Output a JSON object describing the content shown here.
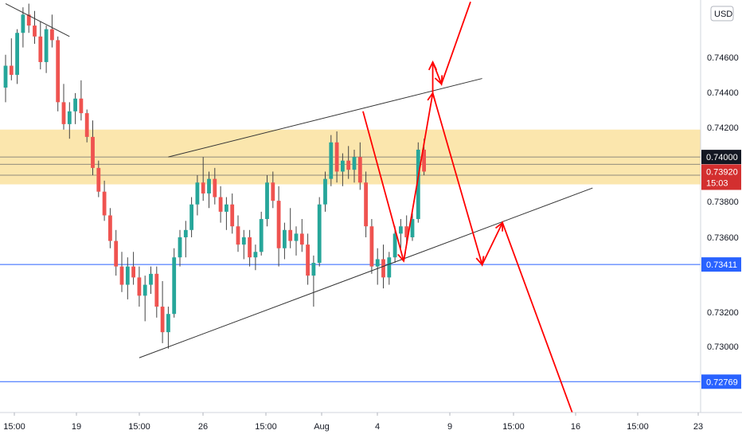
{
  "chart_data": {
    "type": "candlestick",
    "currency": "USD",
    "price_axis": {
      "min": 0.726,
      "max": 0.7486
    },
    "y_ticks": [
      "0.74600",
      "0.74400",
      "0.74200",
      "0.73800",
      "0.73600",
      "0.73200",
      "0.73000"
    ],
    "x_ticks": [
      "15:00",
      "19",
      "15:00",
      "26",
      "15:00",
      "Aug",
      "4",
      "9",
      "15:00",
      "16",
      "15:00",
      "23"
    ],
    "current_price": {
      "value": "0.73920",
      "countdown": "15:03",
      "color": "#d32f2f"
    },
    "level_label": {
      "value": "0.74000",
      "color": "#131722"
    },
    "horizontal_levels": [
      {
        "value": "0.73411",
        "price": 0.73411,
        "color": "#2962ff"
      },
      {
        "value": "0.72769",
        "price": 0.72769,
        "color": "#2962ff"
      }
    ],
    "resistance_zone": {
      "from": 0.7385,
      "to": 0.7415,
      "color": "#fbe3a4"
    },
    "zone_lines": [
      0.74,
      0.7396,
      0.739
    ],
    "colors": {
      "up": "#26a69a",
      "down": "#ef5350",
      "projection": "#ff0000",
      "trendline": "#333333"
    },
    "candles": [
      [
        0.7438,
        0.7456,
        0.743,
        0.745
      ],
      [
        0.745,
        0.7465,
        0.7442,
        0.7445
      ],
      [
        0.7445,
        0.747,
        0.744,
        0.7468
      ],
      [
        0.7468,
        0.7482,
        0.746,
        0.7478
      ],
      [
        0.7478,
        0.7484,
        0.7468,
        0.7472
      ],
      [
        0.7472,
        0.748,
        0.7462,
        0.7466
      ],
      [
        0.7466,
        0.7474,
        0.7448,
        0.7452
      ],
      [
        0.7452,
        0.7472,
        0.7446,
        0.747
      ],
      [
        0.747,
        0.7478,
        0.746,
        0.7464
      ],
      [
        0.7464,
        0.7466,
        0.7425,
        0.743
      ],
      [
        0.743,
        0.744,
        0.7415,
        0.7418
      ],
      [
        0.7418,
        0.743,
        0.741,
        0.7425
      ],
      [
        0.7425,
        0.7435,
        0.7418,
        0.7432
      ],
      [
        0.7432,
        0.7442,
        0.742,
        0.7424
      ],
      [
        0.7424,
        0.7426,
        0.7408,
        0.7411
      ],
      [
        0.7411,
        0.742,
        0.739,
        0.7394
      ],
      [
        0.7394,
        0.7398,
        0.7378,
        0.7381
      ],
      [
        0.7381,
        0.7387,
        0.7365,
        0.7368
      ],
      [
        0.7368,
        0.7372,
        0.735,
        0.7354
      ],
      [
        0.7354,
        0.736,
        0.7335,
        0.734
      ],
      [
        0.734,
        0.7348,
        0.7326,
        0.733
      ],
      [
        0.733,
        0.7345,
        0.7322,
        0.734
      ],
      [
        0.734,
        0.7348,
        0.733,
        0.7334
      ],
      [
        0.7334,
        0.734,
        0.7318,
        0.7324
      ],
      [
        0.7324,
        0.7335,
        0.731,
        0.733
      ],
      [
        0.733,
        0.734,
        0.7325,
        0.7336
      ],
      [
        0.7336,
        0.734,
        0.7312,
        0.7318
      ],
      [
        0.7318,
        0.7332,
        0.7298,
        0.7304
      ],
      [
        0.7304,
        0.7318,
        0.7295,
        0.7314
      ],
      [
        0.7314,
        0.735,
        0.7312,
        0.7345
      ],
      [
        0.7345,
        0.736,
        0.734,
        0.7356
      ],
      [
        0.7356,
        0.7365,
        0.7345,
        0.736
      ],
      [
        0.736,
        0.7378,
        0.7356,
        0.7374
      ],
      [
        0.7374,
        0.739,
        0.7368,
        0.7386
      ],
      [
        0.7386,
        0.74,
        0.7376,
        0.738
      ],
      [
        0.738,
        0.7392,
        0.7372,
        0.7388
      ],
      [
        0.7388,
        0.7394,
        0.7374,
        0.7378
      ],
      [
        0.7378,
        0.7384,
        0.7364,
        0.737
      ],
      [
        0.737,
        0.7378,
        0.736,
        0.7374
      ],
      [
        0.7374,
        0.738,
        0.7358,
        0.7362
      ],
      [
        0.7362,
        0.7368,
        0.7348,
        0.7352
      ],
      [
        0.7352,
        0.736,
        0.7344,
        0.7356
      ],
      [
        0.7356,
        0.736,
        0.734,
        0.7345
      ],
      [
        0.7345,
        0.7352,
        0.7338,
        0.7348
      ],
      [
        0.7348,
        0.737,
        0.7346,
        0.7366
      ],
      [
        0.7366,
        0.739,
        0.7362,
        0.7386
      ],
      [
        0.7386,
        0.7392,
        0.7372,
        0.7376
      ],
      [
        0.7376,
        0.7384,
        0.734,
        0.735
      ],
      [
        0.735,
        0.7364,
        0.7344,
        0.736
      ],
      [
        0.736,
        0.7372,
        0.735,
        0.7354
      ],
      [
        0.7354,
        0.7362,
        0.7346,
        0.7358
      ],
      [
        0.7358,
        0.7366,
        0.7348,
        0.7352
      ],
      [
        0.7352,
        0.7358,
        0.733,
        0.7335
      ],
      [
        0.7335,
        0.7346,
        0.7318,
        0.7342
      ],
      [
        0.7342,
        0.7378,
        0.734,
        0.7374
      ],
      [
        0.7374,
        0.7392,
        0.737,
        0.7388
      ],
      [
        0.7388,
        0.7412,
        0.7384,
        0.7408
      ],
      [
        0.7408,
        0.7414,
        0.7386,
        0.7392
      ],
      [
        0.7392,
        0.7402,
        0.7384,
        0.7398
      ],
      [
        0.7398,
        0.7406,
        0.7388,
        0.7393
      ],
      [
        0.7393,
        0.7404,
        0.7386,
        0.74
      ],
      [
        0.74,
        0.7408,
        0.7382,
        0.7386
      ],
      [
        0.7386,
        0.7392,
        0.7356,
        0.7362
      ],
      [
        0.7362,
        0.7366,
        0.7336,
        0.734
      ],
      [
        0.734,
        0.735,
        0.733,
        0.7344
      ],
      [
        0.7344,
        0.7352,
        0.7328,
        0.7334
      ],
      [
        0.7334,
        0.7348,
        0.733,
        0.7345
      ],
      [
        0.7345,
        0.7362,
        0.7342,
        0.7358
      ],
      [
        0.7358,
        0.7366,
        0.735,
        0.7362
      ],
      [
        0.7362,
        0.7368,
        0.7352,
        0.7356
      ],
      [
        0.7356,
        0.737,
        0.7354,
        0.7366
      ],
      [
        0.7366,
        0.7408,
        0.7364,
        0.7404
      ],
      [
        0.7404,
        0.741,
        0.739,
        0.7392
      ]
    ],
    "trendlines": [
      {
        "x1": 0,
        "y1": 0.7484,
        "x2": 11,
        "y2": 0.7466
      },
      {
        "x1": 23,
        "y1": 0.729,
        "x2": 101,
        "y2": 0.7383
      },
      {
        "x1": 28,
        "y1": 0.74,
        "x2": 82,
        "y2": 0.7443
      }
    ],
    "projection": [
      {
        "x": 61.5,
        "y": 0.7425
      },
      {
        "x": 68.5,
        "y": 0.7343
      },
      {
        "x": 73.5,
        "y": 0.7435
      },
      {
        "x": 82,
        "y": 0.7341
      },
      {
        "x": 85.5,
        "y": 0.7364
      },
      {
        "x": 97.5,
        "y": 0.726
      }
    ],
    "projection_hook": [
      {
        "x": 73.5,
        "y": 0.7435
      },
      {
        "x": 73.5,
        "y": 0.7452
      },
      {
        "x": 75,
        "y": 0.744
      },
      {
        "x": 80,
        "y": 0.7485
      }
    ]
  }
}
